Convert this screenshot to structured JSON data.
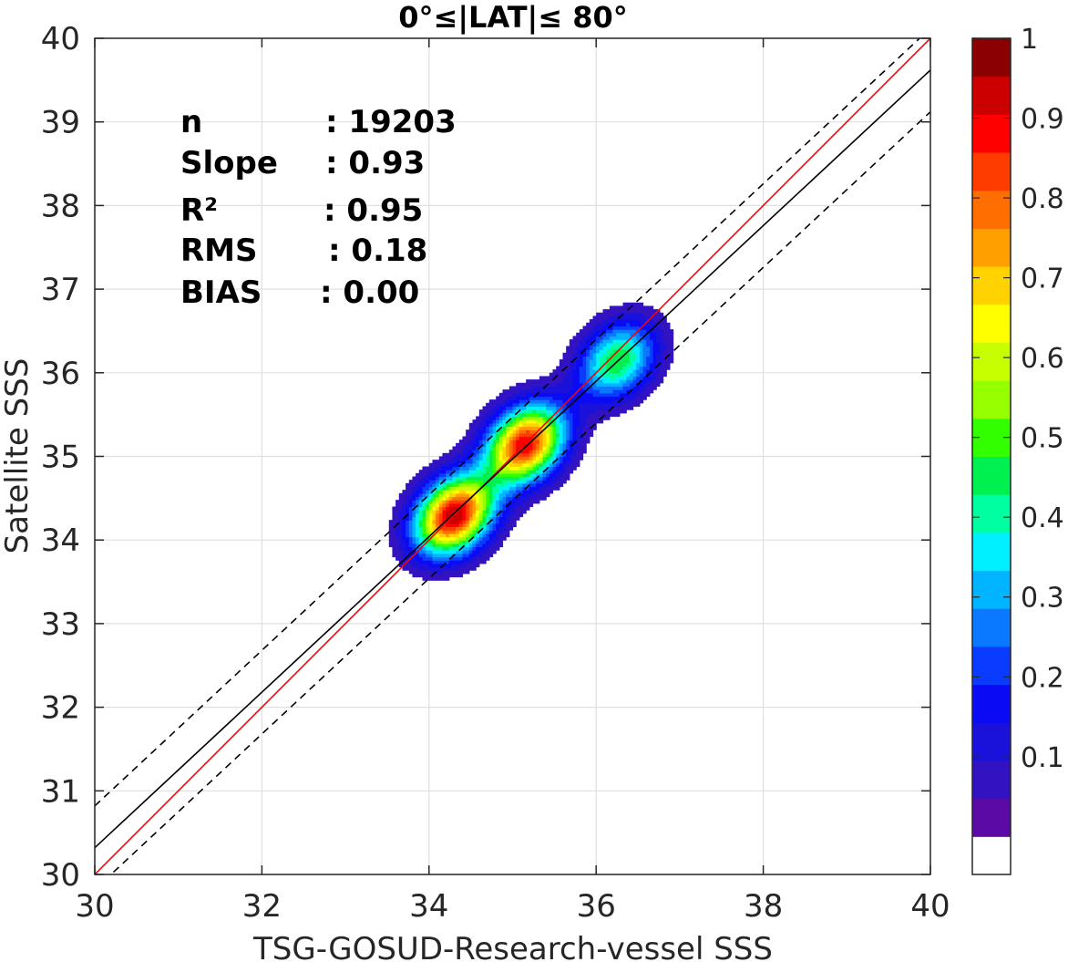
{
  "chart_data": {
    "type": "contour",
    "title": "0°≤|LAT|≤ 80°",
    "xlabel": "TSG-GOSUD-Research-vessel SSS",
    "ylabel": "Satellite SSS",
    "xlim": [
      30,
      40
    ],
    "ylim": [
      30,
      40
    ],
    "x_ticks": [
      "30",
      "32",
      "34",
      "36",
      "38",
      "40"
    ],
    "y_ticks": [
      "30",
      "31",
      "32",
      "33",
      "34",
      "35",
      "36",
      "37",
      "38",
      "39",
      "40"
    ],
    "grid": true,
    "stats": [
      {
        "label": "n",
        "value": ": 19203"
      },
      {
        "label": "Slope",
        "value": ": 0.93"
      },
      {
        "label": "R²",
        "value": ": 0.95"
      },
      {
        "label": "RMS",
        "value": ": 0.18"
      },
      {
        "label": "BIAS",
        "value": ": 0.00"
      }
    ],
    "lines": [
      {
        "kind": "one-to-one",
        "color": "#ff0000",
        "style": "solid",
        "slope": 1.0,
        "intercept": 0.0
      },
      {
        "kind": "regression",
        "color": "#000000",
        "style": "solid",
        "slope": 0.93,
        "intercept": 2.42
      },
      {
        "kind": "upper-bound",
        "color": "#000000",
        "style": "dashed",
        "slope": 0.93,
        "intercept": 2.92
      },
      {
        "kind": "lower-bound",
        "color": "#000000",
        "style": "dashed",
        "slope": 0.93,
        "intercept": 1.92
      }
    ],
    "density_peaks": [
      {
        "x": 34.3,
        "y": 34.3,
        "peak": 1.0
      },
      {
        "x": 35.15,
        "y": 35.15,
        "peak": 0.95
      },
      {
        "x": 36.25,
        "y": 36.15,
        "peak": 0.5
      }
    ],
    "colorbar": {
      "ticks": [
        "0.1",
        "0.2",
        "0.3",
        "0.4",
        "0.5",
        "0.6",
        "0.7",
        "0.8",
        "0.9",
        "1"
      ],
      "levels": 20,
      "colors": [
        "#ffffff",
        "#5b0aa5",
        "#3312c2",
        "#1a12da",
        "#0a0af5",
        "#0a3cff",
        "#0a78ff",
        "#00b4ff",
        "#00f0ff",
        "#00ffa0",
        "#00f050",
        "#32ff00",
        "#96ff00",
        "#c8ff00",
        "#ffff00",
        "#ffd200",
        "#ffa000",
        "#ff6e00",
        "#ff3c00",
        "#ff0000",
        "#cc0000",
        "#8b0000"
      ]
    }
  }
}
